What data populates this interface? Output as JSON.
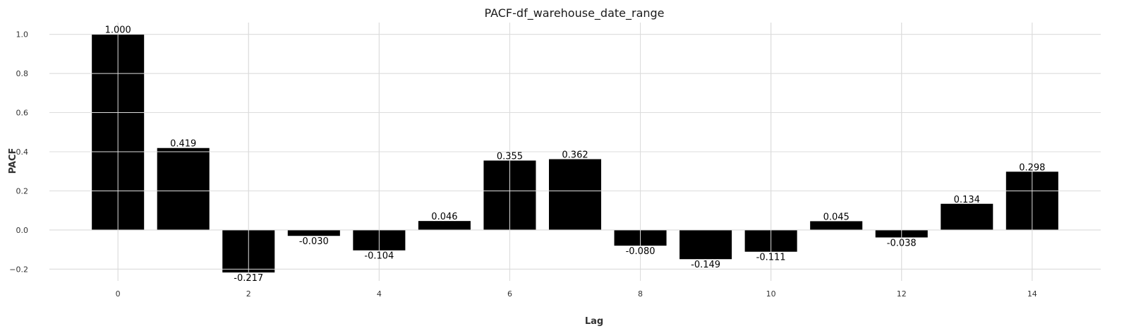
{
  "chart_data": {
    "type": "bar",
    "title": "PACF-df_warehouse_date_range",
    "xlabel": "Lag",
    "ylabel": "PACF",
    "x": [
      0,
      1,
      2,
      3,
      4,
      5,
      6,
      7,
      8,
      9,
      10,
      11,
      12,
      13,
      14
    ],
    "values": [
      1.0,
      0.419,
      -0.217,
      -0.03,
      -0.104,
      0.046,
      0.355,
      0.362,
      -0.08,
      -0.149,
      -0.111,
      0.045,
      -0.038,
      0.134,
      0.298
    ],
    "data_labels": [
      "1.000",
      "0.419",
      "-0.217",
      "-0.030",
      "-0.104",
      "0.046",
      "0.355",
      "0.362",
      "-0.080",
      "-0.149",
      "-0.111",
      "0.045",
      "-0.038",
      "0.134",
      "0.298"
    ],
    "xticks": [
      0,
      2,
      4,
      6,
      8,
      10,
      12,
      14
    ],
    "xtick_labels": [
      "0",
      "2",
      "4",
      "6",
      "8",
      "10",
      "12",
      "14"
    ],
    "yticks": [
      -0.2,
      0.0,
      0.2,
      0.4,
      0.6,
      0.8,
      1.0
    ],
    "ytick_labels": [
      "−0.2",
      "0.0",
      "0.2",
      "0.4",
      "0.6",
      "0.8",
      "1.0"
    ],
    "xlim": [
      -1.05,
      15.05
    ],
    "ylim": [
      -0.26,
      1.06
    ],
    "grid": true,
    "bar_color": "#000000",
    "grid_color": "#dcdcdc",
    "background": "#ffffff"
  }
}
